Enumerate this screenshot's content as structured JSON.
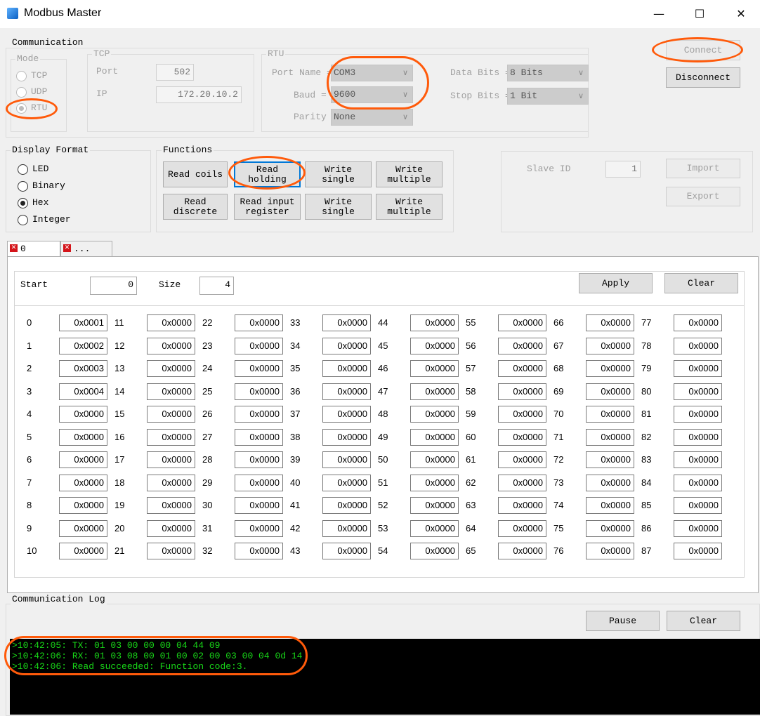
{
  "window": {
    "title": "Modbus Master",
    "minimize": "—",
    "maximize": "☐",
    "close": "✕"
  },
  "communication": {
    "label": "Communication",
    "mode": {
      "label": "Mode",
      "options": [
        {
          "label": "TCP",
          "selected": false
        },
        {
          "label": "UDP",
          "selected": false
        },
        {
          "label": "RTU",
          "selected": true
        }
      ]
    },
    "tcp": {
      "label": "TCP",
      "port_label": "Port",
      "port": "502",
      "ip_label": "IP",
      "ip": "172.20.10.2"
    },
    "rtu": {
      "label": "RTU",
      "port_name_label": "Port Name =",
      "port_name": "COM3",
      "baud_label": "Baud =",
      "baud": "9600",
      "parity_label": "Parity",
      "parity": "None",
      "data_bits_label": "Data Bits =",
      "data_bits": "8 Bits",
      "stop_bits_label": "Stop Bits =",
      "stop_bits": "1 Bit"
    },
    "connect": "Connect",
    "disconnect": "Disconnect"
  },
  "display_format": {
    "label": "Display Format",
    "options": [
      {
        "label": "LED",
        "selected": false
      },
      {
        "label": "Binary",
        "selected": false
      },
      {
        "label": "Hex",
        "selected": true
      },
      {
        "label": "Integer",
        "selected": false
      }
    ]
  },
  "functions": {
    "label": "Functions",
    "buttons": [
      [
        "Read coils"
      ],
      [
        "Read",
        "holding"
      ],
      [
        "Write",
        "single"
      ],
      [
        "Write",
        "multiple"
      ],
      [
        "Read",
        "discrete"
      ],
      [
        "Read input",
        "register"
      ],
      [
        "Write",
        "single"
      ],
      [
        "Write",
        "multiple"
      ]
    ]
  },
  "slave": {
    "id_label": "Slave ID",
    "id": "1",
    "import": "Import",
    "export": "Export"
  },
  "tabs": [
    {
      "label": "0"
    },
    {
      "label": "..."
    }
  ],
  "panel": {
    "start_label": "Start",
    "start": "0",
    "size_label": "Size",
    "size": "4",
    "apply": "Apply",
    "clear": "Clear"
  },
  "registers": [
    {
      "labels": [
        0,
        1,
        2,
        3,
        4,
        5,
        6,
        7,
        8,
        9,
        10
      ],
      "values": [
        "0x0001",
        "0x0002",
        "0x0003",
        "0x0004",
        "0x0000",
        "0x0000",
        "0x0000",
        "0x0000",
        "0x0000",
        "0x0000",
        "0x0000"
      ]
    },
    {
      "labels": [
        11,
        12,
        13,
        14,
        15,
        16,
        17,
        18,
        19,
        20,
        21
      ],
      "values": [
        "0x0000",
        "0x0000",
        "0x0000",
        "0x0000",
        "0x0000",
        "0x0000",
        "0x0000",
        "0x0000",
        "0x0000",
        "0x0000",
        "0x0000"
      ]
    },
    {
      "labels": [
        22,
        23,
        24,
        25,
        26,
        27,
        28,
        29,
        30,
        31,
        32
      ],
      "values": [
        "0x0000",
        "0x0000",
        "0x0000",
        "0x0000",
        "0x0000",
        "0x0000",
        "0x0000",
        "0x0000",
        "0x0000",
        "0x0000",
        "0x0000"
      ]
    },
    {
      "labels": [
        33,
        34,
        35,
        36,
        37,
        38,
        39,
        40,
        41,
        42,
        43
      ],
      "values": [
        "0x0000",
        "0x0000",
        "0x0000",
        "0x0000",
        "0x0000",
        "0x0000",
        "0x0000",
        "0x0000",
        "0x0000",
        "0x0000",
        "0x0000"
      ]
    },
    {
      "labels": [
        44,
        45,
        46,
        47,
        48,
        49,
        50,
        51,
        52,
        53,
        54
      ],
      "values": [
        "0x0000",
        "0x0000",
        "0x0000",
        "0x0000",
        "0x0000",
        "0x0000",
        "0x0000",
        "0x0000",
        "0x0000",
        "0x0000",
        "0x0000"
      ]
    },
    {
      "labels": [
        55,
        56,
        57,
        58,
        59,
        60,
        61,
        62,
        63,
        64,
        65
      ],
      "values": [
        "0x0000",
        "0x0000",
        "0x0000",
        "0x0000",
        "0x0000",
        "0x0000",
        "0x0000",
        "0x0000",
        "0x0000",
        "0x0000",
        "0x0000"
      ]
    },
    {
      "labels": [
        66,
        67,
        68,
        69,
        70,
        71,
        72,
        73,
        74,
        75,
        76
      ],
      "values": [
        "0x0000",
        "0x0000",
        "0x0000",
        "0x0000",
        "0x0000",
        "0x0000",
        "0x0000",
        "0x0000",
        "0x0000",
        "0x0000",
        "0x0000"
      ]
    },
    {
      "labels": [
        77,
        78,
        79,
        80,
        81,
        82,
        83,
        84,
        85,
        86,
        87
      ],
      "values": [
        "0x0000",
        "0x0000",
        "0x0000",
        "0x0000",
        "0x0000",
        "0x0000",
        "0x0000",
        "0x0000",
        "0x0000",
        "0x0000",
        "0x0000"
      ]
    }
  ],
  "log": {
    "label": "Communication Log",
    "pause": "Pause",
    "clear": "Clear",
    "lines": [
      ">10:42:05: TX: 01 03 00 00 00 04 44 09",
      ">10:42:06: RX: 01 03 08 00 01 00 02 00 03 00 04 0d 14",
      ">10:42:06: Read succeeded: Function code:3."
    ]
  },
  "colors": {
    "log_text": "#18d818",
    "log_bg": "#000000",
    "annotation": "#ff5a0a",
    "focus": "#0078d7"
  }
}
